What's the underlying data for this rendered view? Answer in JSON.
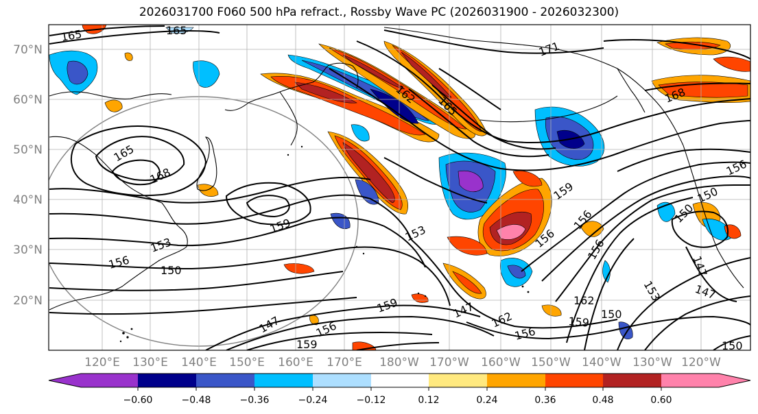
{
  "title": "2026031700 F060 500 hPa refract., Rossby Wave PC (2026031900 - 2026032300)",
  "lat_labels": [
    "20°N",
    "30°N",
    "40°N",
    "50°N",
    "60°N",
    "70°N"
  ],
  "lon_labels": [
    "120°E",
    "130°E",
    "140°E",
    "150°E",
    "160°E",
    "170°E",
    "180°W",
    "170°W",
    "160°W",
    "150°W",
    "140°W",
    "130°W",
    "120°W"
  ],
  "colorbar": {
    "colors": [
      "#9932CC",
      "#00008B",
      "#3A56C8",
      "#00BFFF",
      "#ADDFFF",
      "#FFFFFF",
      "#FFE97F",
      "#FFA500",
      "#FF4500",
      "#B22222",
      "#FF82AB"
    ],
    "labels": [
      "−0.60",
      "−0.48",
      "−0.36",
      "−0.24",
      "−0.12",
      "0.12",
      "0.24",
      "0.36",
      "0.48",
      "0.60"
    ]
  },
  "contour_labels": [
    {
      "text": "165",
      "rot": 0
    },
    {
      "text": "165",
      "rot": -10
    },
    {
      "text": "171",
      "rot": -20
    },
    {
      "text": "168",
      "rot": -22
    },
    {
      "text": "162",
      "rot": 40
    },
    {
      "text": "165",
      "rot": 45
    },
    {
      "text": "165",
      "rot": -30
    },
    {
      "text": "168",
      "rot": -25
    },
    {
      "text": "159",
      "rot": -20
    },
    {
      "text": "153",
      "rot": -20
    },
    {
      "text": "156",
      "rot": -15
    },
    {
      "text": "150",
      "rot": 0
    },
    {
      "text": "153",
      "rot": -25
    },
    {
      "text": "159",
      "rot": -35
    },
    {
      "text": "156",
      "rot": -40
    },
    {
      "text": "156",
      "rot": -50
    },
    {
      "text": "156",
      "rot": -60
    },
    {
      "text": "150",
      "rot": -45
    },
    {
      "text": "150",
      "rot": -25
    },
    {
      "text": "156",
      "rot": -25
    },
    {
      "text": "147",
      "rot": 70
    },
    {
      "text": "147",
      "rot": 20
    },
    {
      "text": "153",
      "rot": 60
    },
    {
      "text": "162",
      "rot": 0
    },
    {
      "text": "162",
      "rot": -25
    },
    {
      "text": "159",
      "rot": 5
    },
    {
      "text": "150",
      "rot": 0
    },
    {
      "text": "156",
      "rot": -15
    },
    {
      "text": "159",
      "rot": -20
    },
    {
      "text": "147",
      "rot": -25
    },
    {
      "text": "147",
      "rot": -30
    },
    {
      "text": "156",
      "rot": -25
    },
    {
      "text": "159",
      "rot": 0
    },
    {
      "text": "150",
      "rot": 0
    }
  ]
}
